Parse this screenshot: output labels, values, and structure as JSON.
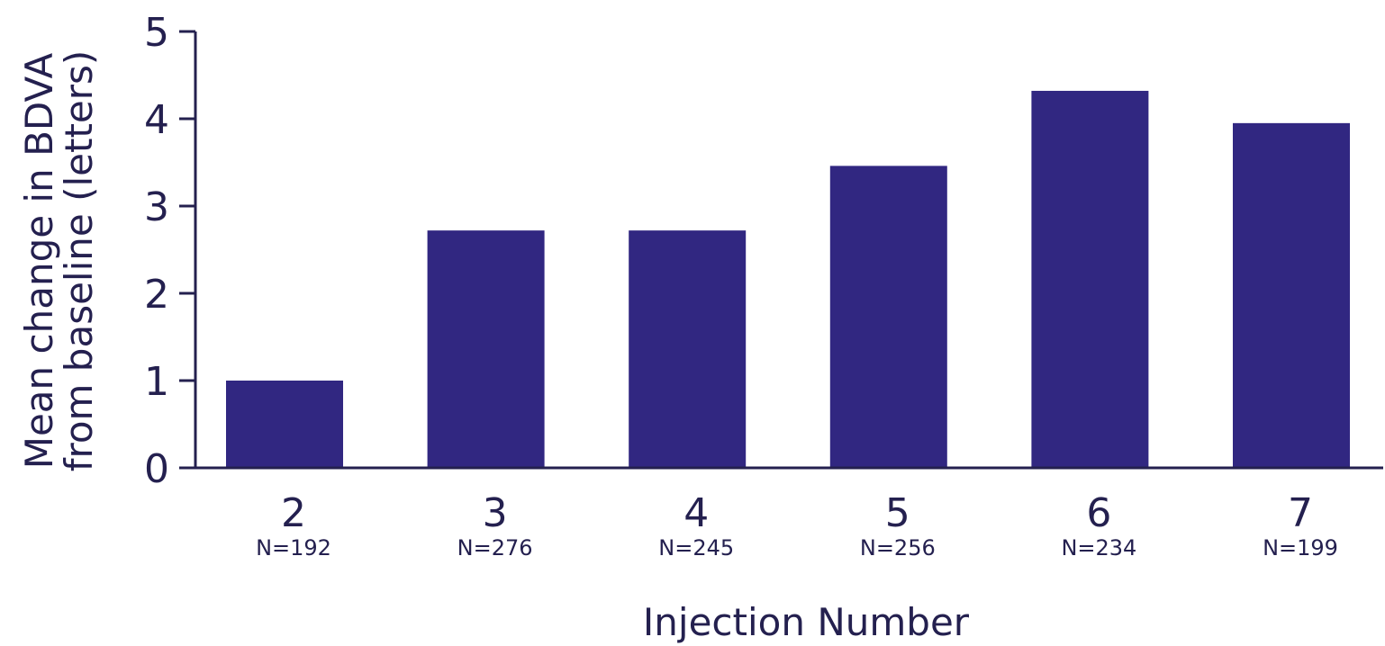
{
  "chart_data": {
    "type": "bar",
    "categories": [
      "2",
      "3",
      "4",
      "5",
      "6",
      "7"
    ],
    "n_labels": [
      "N=192",
      "N=276",
      "N=245",
      "N=256",
      "N=234",
      "N=199"
    ],
    "values": [
      1.0,
      2.72,
      2.72,
      3.46,
      4.32,
      3.95
    ],
    "title": "",
    "xlabel": "Injection Number",
    "ylabel_lines": [
      "Mean change in BDVA",
      "from baseline (letters)"
    ],
    "ylim": [
      0,
      5
    ],
    "yticks": [
      "0",
      "1",
      "2",
      "3",
      "4",
      "5"
    ],
    "grid": false,
    "bar_color": "#312781",
    "axis_color": "#24204f"
  }
}
